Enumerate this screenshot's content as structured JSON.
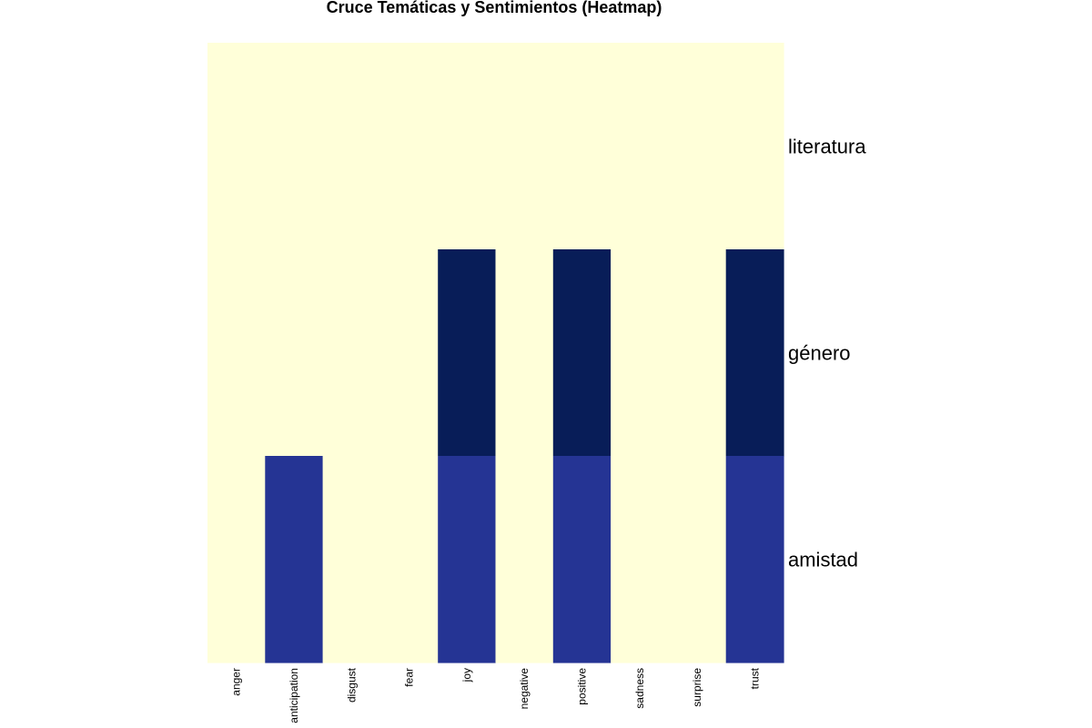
{
  "chart_data": {
    "type": "heatmap",
    "title": "Cruce Temáticas y Sentimientos (Heatmap)",
    "xlabel": "",
    "ylabel": "",
    "columns": [
      "anger",
      "anticipation",
      "disgust",
      "fear",
      "joy",
      "negative",
      "positive",
      "sadness",
      "surprise",
      "trust"
    ],
    "rows": [
      "literatura",
      "género",
      "amistad"
    ],
    "values": [
      [
        0,
        0,
        0,
        0,
        0,
        0,
        0,
        0,
        0,
        0
      ],
      [
        0,
        0,
        0,
        0,
        2,
        0,
        2,
        0,
        0,
        2
      ],
      [
        0,
        1,
        0,
        0,
        1,
        0,
        1,
        0,
        0,
        1
      ]
    ],
    "color_scale": {
      "palette": "YlGnBu",
      "min_color": "#ffffd9",
      "max_color": "#081d58",
      "stops": [
        "#ffffd9",
        "#253494",
        "#081d58"
      ]
    },
    "legend": "none",
    "grid": false
  }
}
